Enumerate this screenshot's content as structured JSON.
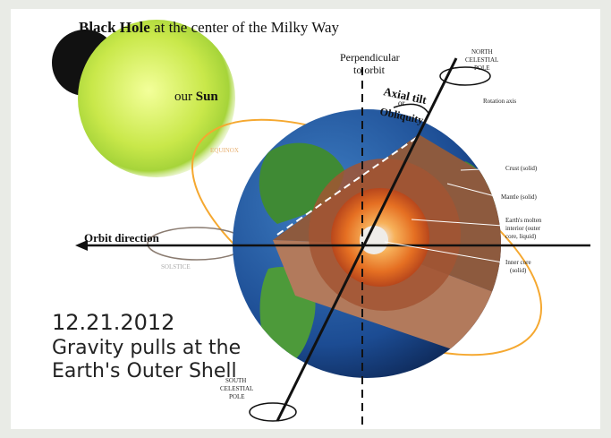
{
  "header": {
    "title_bold": "Black Hole",
    "title_rest": "at the center of the Milky Way"
  },
  "sun": {
    "prefix": "our",
    "bold": "Sun"
  },
  "labels": {
    "perpendicular": [
      "Perpendicular",
      "to orbit"
    ],
    "axial_tilt": [
      "Axial tilt",
      "or",
      "Obliquity"
    ],
    "north_pole": [
      "NORTH",
      "CELESTIAL",
      "POLE"
    ],
    "rotation_axis": "Rotation axis",
    "crust": "Crust (solid)",
    "mantle": "Mantle (solid)",
    "outer_core": [
      "Earth's molten",
      "interior (outer",
      "core, liquid)"
    ],
    "inner_core": [
      "Inner core",
      "(solid)"
    ],
    "orbit_direction": "Orbit direction",
    "solstice": "SOLSTICE",
    "equinox": "EQUINOX",
    "south_pole": [
      "SOUTH",
      "CELESTIAL",
      "POLE"
    ]
  },
  "caption": {
    "date": "12.21.2012",
    "lines": [
      "Gravity pulls at the",
      "Earth's Outer Shell"
    ]
  }
}
